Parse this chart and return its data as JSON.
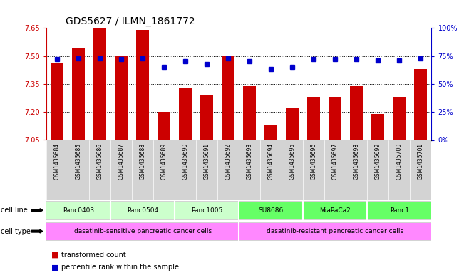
{
  "title": "GDS5627 / ILMN_1861772",
  "samples": [
    "GSM1435684",
    "GSM1435685",
    "GSM1435686",
    "GSM1435687",
    "GSM1435688",
    "GSM1435689",
    "GSM1435690",
    "GSM1435691",
    "GSM1435692",
    "GSM1435693",
    "GSM1435694",
    "GSM1435695",
    "GSM1435696",
    "GSM1435697",
    "GSM1435698",
    "GSM1435699",
    "GSM1435700",
    "GSM1435701"
  ],
  "bar_values": [
    7.46,
    7.54,
    7.65,
    7.5,
    7.64,
    7.2,
    7.33,
    7.29,
    7.5,
    7.34,
    7.13,
    7.22,
    7.28,
    7.28,
    7.34,
    7.19,
    7.28,
    7.43
  ],
  "percentile_values": [
    72,
    73,
    73,
    72,
    73,
    65,
    70,
    68,
    73,
    70,
    63,
    65,
    72,
    72,
    72,
    71,
    71,
    73
  ],
  "bar_color": "#cc0000",
  "dot_color": "#0000cc",
  "ylim_left": [
    7.05,
    7.65
  ],
  "ylim_right": [
    0,
    100
  ],
  "yticks_left": [
    7.05,
    7.2,
    7.35,
    7.5,
    7.65
  ],
  "yticks_right": [
    0,
    25,
    50,
    75,
    100
  ],
  "ytick_labels_right": [
    "0%",
    "25%",
    "50%",
    "75%",
    "100%"
  ],
  "cell_line_light_color": "#ccffcc",
  "cell_line_dark_color": "#66ff66",
  "cell_type_color": "#ff88ff",
  "cell_lines": [
    {
      "label": "Panc0403",
      "start": 0,
      "end": 2,
      "dark": false
    },
    {
      "label": "Panc0504",
      "start": 3,
      "end": 5,
      "dark": false
    },
    {
      "label": "Panc1005",
      "start": 6,
      "end": 8,
      "dark": false
    },
    {
      "label": "SU8686",
      "start": 9,
      "end": 11,
      "dark": true
    },
    {
      "label": "MiaPaCa2",
      "start": 12,
      "end": 14,
      "dark": true
    },
    {
      "label": "Panc1",
      "start": 15,
      "end": 17,
      "dark": true
    }
  ],
  "cell_types": [
    {
      "label": "dasatinib-sensitive pancreatic cancer cells",
      "start": 0,
      "end": 8
    },
    {
      "label": "dasatinib-resistant pancreatic cancer cells",
      "start": 9,
      "end": 17
    }
  ],
  "background_color": "#ffffff",
  "xtick_bg_color": "#d3d3d3"
}
